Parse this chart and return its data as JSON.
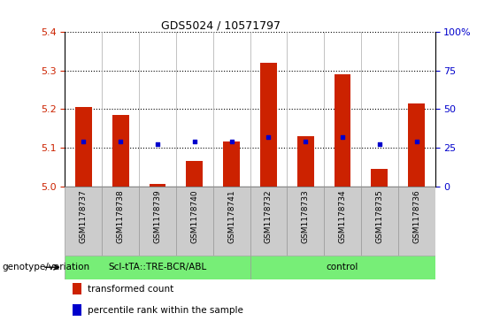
{
  "title": "GDS5024 / 10571797",
  "samples": [
    "GSM1178737",
    "GSM1178738",
    "GSM1178739",
    "GSM1178740",
    "GSM1178741",
    "GSM1178732",
    "GSM1178733",
    "GSM1178734",
    "GSM1178735",
    "GSM1178736"
  ],
  "bar_values": [
    5.205,
    5.185,
    5.005,
    5.065,
    5.115,
    5.32,
    5.13,
    5.29,
    5.045,
    5.215
  ],
  "dot_values": [
    5.115,
    5.115,
    5.108,
    5.115,
    5.115,
    5.128,
    5.115,
    5.128,
    5.108,
    5.115
  ],
  "ylim_left": [
    5.0,
    5.4
  ],
  "ylim_right": [
    0,
    100
  ],
  "yticks_left": [
    5.0,
    5.1,
    5.2,
    5.3,
    5.4
  ],
  "yticks_right": [
    0,
    25,
    50,
    75,
    100
  ],
  "bar_color": "#cc2200",
  "dot_color": "#0000cc",
  "bar_width": 0.45,
  "group1_label": "ScI-tTA::TRE-BCR/ABL",
  "group2_label": "control",
  "group1_indices": [
    0,
    1,
    2,
    3,
    4
  ],
  "group2_indices": [
    5,
    6,
    7,
    8,
    9
  ],
  "group_bg_color": "#77ee77",
  "sample_bg_color": "#cccccc",
  "genotype_label": "genotype/variation",
  "legend_red": "transformed count",
  "legend_blue": "percentile rank within the sample",
  "plot_bg": "#ffffff",
  "right_axis_color": "#0000cc",
  "left_axis_color": "#cc2200"
}
